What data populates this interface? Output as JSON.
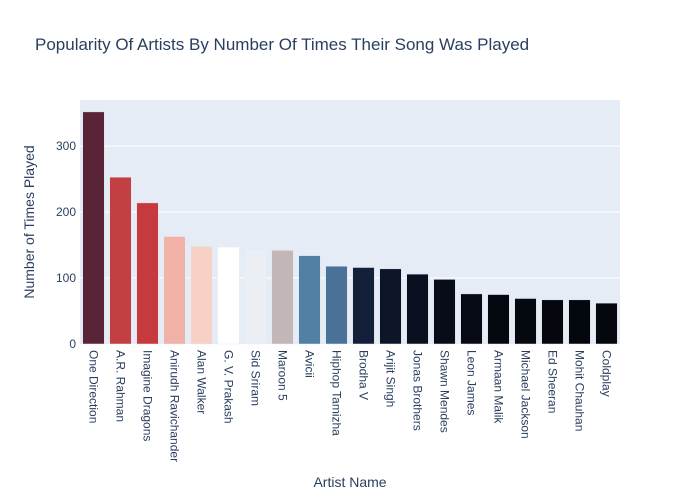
{
  "chart_data": {
    "type": "bar",
    "title": "Popularity Of Artists By Number Of Times Their Song Was Played",
    "xlabel": "Artist Name",
    "ylabel": "Number of Times Played",
    "ylim": [
      0,
      370
    ],
    "yticks": [
      0,
      100,
      200,
      300
    ],
    "grid": true,
    "legend": "none",
    "categories": [
      "One Direction",
      "A.R. Rahman",
      "Imagine Dragons",
      "Anirudh Ravichander",
      "Alan Walker",
      "G. V. Prakash",
      "Sid Sriram",
      "Maroon 5",
      "Avicii",
      "Hiphop Tamizha",
      "Brodha V",
      "Arijit Singh",
      "Jonas Brothers",
      "Shawn Mendes",
      "Leon James",
      "Armaan Malik",
      "Michael Jackson",
      "Ed Sheeran",
      "Mohit Chauhan",
      "Coldplay"
    ],
    "values": [
      352,
      253,
      214,
      163,
      148,
      147,
      143,
      142,
      134,
      118,
      116,
      114,
      106,
      98,
      76,
      75,
      69,
      67,
      67,
      62
    ],
    "bar_colors": [
      "#5a2438",
      "#c24044",
      "#c6393f",
      "#f1b3a8",
      "#f7d2c4",
      "#ffffff",
      "#ebeff5",
      "#c2b6b6",
      "#5280a4",
      "#4a7299",
      "#13203a",
      "#0d1628",
      "#0a1020",
      "#080c18",
      "#060a14",
      "#05080f",
      "#05080f",
      "#04070d",
      "#04070d",
      "#04070d"
    ],
    "plot_bg": "#e5ecf6",
    "grid_color": "#ffffff",
    "text_color": "#2a3f5f"
  }
}
